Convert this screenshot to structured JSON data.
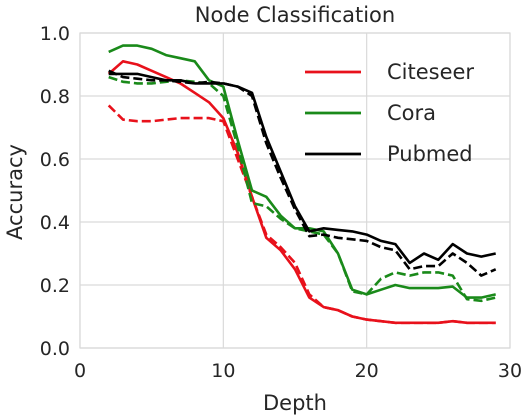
{
  "chart_data": {
    "type": "line",
    "title": "Node Classification",
    "xlabel": "Depth",
    "ylabel": "Accuracy",
    "xlim": [
      0,
      30
    ],
    "ylim": [
      0.0,
      1.0
    ],
    "xticks": [
      0,
      10,
      20,
      30
    ],
    "xtick_labels": [
      "0",
      "10",
      "20",
      "30"
    ],
    "yticks": [
      0.0,
      0.2,
      0.4,
      0.6,
      0.8,
      1.0
    ],
    "ytick_labels": [
      "0.0",
      "0.2",
      "0.4",
      "0.6",
      "0.8",
      "1.0"
    ],
    "grid": true,
    "legend": {
      "position": "top-right",
      "entries": [
        {
          "name": "Citeseer",
          "color": "#e8111b"
        },
        {
          "name": "Cora",
          "color": "#1a8a1a"
        },
        {
          "name": "Pubmed",
          "color": "#000000"
        }
      ]
    },
    "x": [
      2,
      3,
      4,
      5,
      6,
      7,
      8,
      9,
      10,
      11,
      12,
      13,
      14,
      15,
      16,
      17,
      18,
      19,
      20,
      21,
      22,
      23,
      24,
      25,
      26,
      27,
      28,
      29
    ],
    "series": [
      {
        "name": "Citeseer",
        "style": "solid",
        "color": "#e8111b",
        "values": [
          0.87,
          0.91,
          0.9,
          0.88,
          0.86,
          0.84,
          0.81,
          0.78,
          0.73,
          0.62,
          0.48,
          0.35,
          0.31,
          0.25,
          0.16,
          0.13,
          0.12,
          0.1,
          0.09,
          0.085,
          0.08,
          0.08,
          0.08,
          0.08,
          0.085,
          0.08,
          0.08,
          0.08
        ]
      },
      {
        "name": "Citeseer",
        "style": "dashed",
        "color": "#e8111b",
        "values": [
          0.77,
          0.725,
          0.72,
          0.72,
          0.725,
          0.73,
          0.73,
          0.73,
          0.72,
          0.6,
          0.48,
          0.36,
          0.32,
          0.27,
          0.17,
          0.13,
          0.12,
          0.1,
          0.09,
          0.085,
          0.08,
          0.08,
          0.08,
          0.08,
          0.085,
          0.08,
          0.08,
          0.08
        ]
      },
      {
        "name": "Cora",
        "style": "solid",
        "color": "#1a8a1a",
        "values": [
          0.94,
          0.96,
          0.96,
          0.95,
          0.93,
          0.92,
          0.91,
          0.85,
          0.83,
          0.66,
          0.5,
          0.48,
          0.42,
          0.38,
          0.38,
          0.37,
          0.3,
          0.185,
          0.17,
          0.185,
          0.2,
          0.19,
          0.19,
          0.19,
          0.195,
          0.16,
          0.16,
          0.17
        ]
      },
      {
        "name": "Cora",
        "style": "dashed",
        "color": "#1a8a1a",
        "values": [
          0.86,
          0.845,
          0.84,
          0.84,
          0.845,
          0.85,
          0.845,
          0.84,
          0.8,
          0.64,
          0.46,
          0.45,
          0.41,
          0.38,
          0.37,
          0.36,
          0.3,
          0.18,
          0.17,
          0.22,
          0.24,
          0.23,
          0.24,
          0.24,
          0.23,
          0.155,
          0.15,
          0.16
        ]
      },
      {
        "name": "Pubmed",
        "style": "solid",
        "color": "#000000",
        "values": [
          0.87,
          0.87,
          0.87,
          0.86,
          0.85,
          0.85,
          0.84,
          0.84,
          0.84,
          0.83,
          0.81,
          0.67,
          0.56,
          0.45,
          0.37,
          0.38,
          0.375,
          0.37,
          0.36,
          0.34,
          0.33,
          0.27,
          0.3,
          0.28,
          0.33,
          0.3,
          0.29,
          0.3
        ]
      },
      {
        "name": "Pubmed",
        "style": "dashed",
        "color": "#000000",
        "values": [
          0.88,
          0.86,
          0.855,
          0.85,
          0.85,
          0.845,
          0.84,
          0.845,
          0.84,
          0.83,
          0.8,
          0.65,
          0.54,
          0.44,
          0.355,
          0.36,
          0.35,
          0.345,
          0.34,
          0.32,
          0.31,
          0.25,
          0.26,
          0.26,
          0.3,
          0.27,
          0.23,
          0.25
        ]
      }
    ]
  }
}
